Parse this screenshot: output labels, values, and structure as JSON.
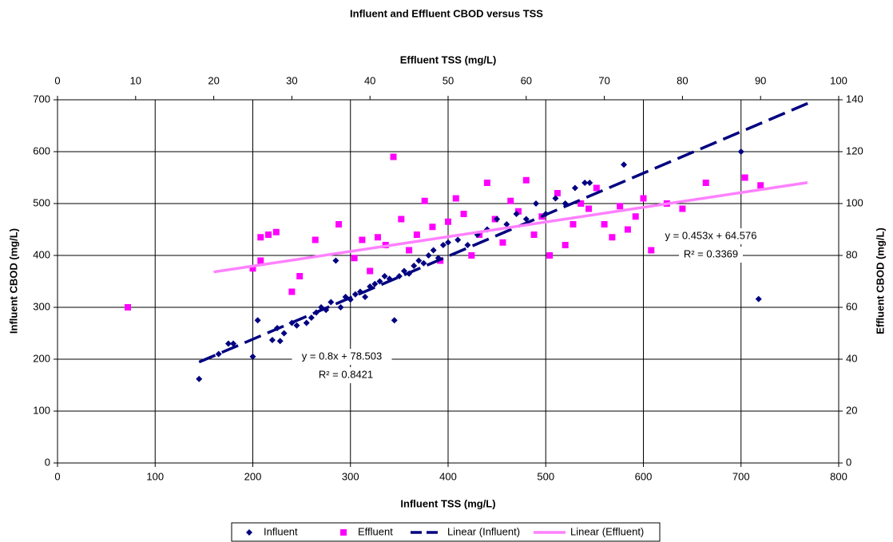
{
  "chart_data": {
    "type": "scatter",
    "title": "Influent and Effluent CBOD versus TSS",
    "x_label": "Influent TSS (mg/L)",
    "x2_label": "Effluent TSS (mg/L)",
    "y_label": "Influent CBOD (mg/L)",
    "y2_label": "Effluent CBOD (mg/L)",
    "xlim": [
      0,
      800
    ],
    "xticks": [
      0,
      100,
      200,
      300,
      400,
      500,
      600,
      700,
      800
    ],
    "x2lim": [
      0,
      100
    ],
    "x2ticks": [
      0,
      10,
      20,
      30,
      40,
      50,
      60,
      70,
      80,
      90,
      100
    ],
    "ylim": [
      0,
      700
    ],
    "yticks": [
      0,
      100,
      200,
      300,
      400,
      500,
      600,
      700
    ],
    "y2lim": [
      0,
      140
    ],
    "y2ticks": [
      0,
      20,
      40,
      60,
      80,
      100,
      120,
      140
    ],
    "grid": true,
    "legend": "bottom",
    "series": [
      {
        "name": "Influent",
        "color": "#000080",
        "marker": "diamond",
        "x": [
          145,
          165,
          175,
          180,
          200,
          205,
          220,
          225,
          228,
          232,
          240,
          245,
          255,
          260,
          265,
          270,
          275,
          280,
          285,
          290,
          295,
          300,
          305,
          310,
          315,
          320,
          325,
          330,
          335,
          340,
          345,
          350,
          355,
          360,
          365,
          370,
          375,
          380,
          385,
          390,
          395,
          400,
          410,
          420,
          430,
          440,
          450,
          460,
          470,
          480,
          490,
          500,
          510,
          520,
          530,
          540,
          545,
          580,
          700,
          718
        ],
        "values": [
          162,
          210,
          230,
          230,
          205,
          275,
          237,
          260,
          235,
          250,
          270,
          265,
          270,
          280,
          290,
          300,
          295,
          310,
          390,
          300,
          320,
          315,
          325,
          330,
          320,
          340,
          345,
          350,
          360,
          355,
          275,
          360,
          370,
          365,
          380,
          390,
          385,
          400,
          410,
          395,
          420,
          425,
          430,
          420,
          440,
          450,
          470,
          460,
          480,
          470,
          500,
          480,
          510,
          500,
          530,
          540,
          540,
          575,
          600,
          316
        ]
      },
      {
        "name": "Effluent",
        "color": "#ff00ff",
        "marker": "square",
        "axis": "y2",
        "x_axis": "x2",
        "x": [
          9,
          25,
          26,
          26,
          27,
          28,
          30,
          31,
          33,
          36,
          38,
          39,
          40,
          41,
          42,
          43,
          44,
          45,
          46,
          47,
          48,
          49,
          50,
          51,
          52,
          53,
          54,
          55,
          56,
          57,
          58,
          59,
          60,
          61,
          62,
          63,
          64,
          65,
          66,
          67,
          68,
          69,
          70,
          71,
          72,
          73,
          74,
          75,
          76,
          78,
          80,
          83,
          88,
          90
        ],
        "values": [
          60,
          75,
          87,
          78,
          88,
          89,
          66,
          72,
          86,
          92,
          79,
          86,
          74,
          87,
          84,
          118,
          94,
          82,
          88,
          101,
          91,
          78,
          93,
          102,
          96,
          80,
          88,
          108,
          94,
          85,
          101,
          97,
          109,
          88,
          95,
          80,
          104,
          84,
          92,
          100,
          98,
          106,
          92,
          87,
          99,
          90,
          95,
          102,
          82,
          100,
          98,
          108,
          110,
          107
        ]
      },
      {
        "name": "Linear (Influent)",
        "color": "#000080",
        "marker": "dashed-line",
        "x": [
          145,
          770
        ],
        "values": [
          194.503,
          694.503
        ]
      },
      {
        "name": "Linear (Effluent)",
        "color": "#ff80ff",
        "marker": "solid-line",
        "axis": "y2",
        "x_axis": "x2",
        "x": [
          20,
          96
        ],
        "values": [
          73.636,
          108.064
        ]
      }
    ],
    "annotations": [
      "y = 0.8x + 78.503",
      "R² = 0.8421",
      "y = 0.453x + 64.576",
      "R² = 0.3369"
    ]
  }
}
